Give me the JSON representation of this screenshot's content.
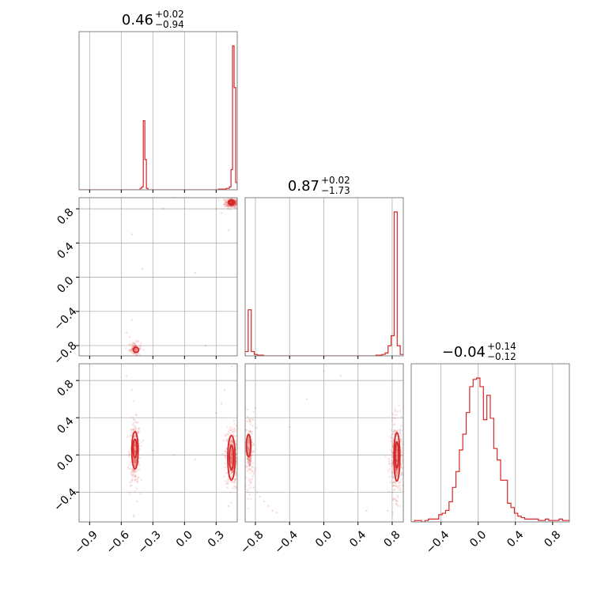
{
  "chart_data": {
    "type": "corner",
    "colors": {
      "line": "#d62728",
      "frame": "#808080",
      "grid": "#b0b0b0"
    },
    "grid": true,
    "parameters": [
      {
        "title": {
          "median": "0.46",
          "plus": "+0.02",
          "minus": "−0.94"
        },
        "range": [
          -1.0,
          0.5
        ],
        "ticks": [
          {
            "value": -0.9,
            "label": "−0.9"
          },
          {
            "value": -0.6,
            "label": "−0.6"
          },
          {
            "value": -0.3,
            "label": "−0.3"
          },
          {
            "value": 0.0,
            "label": "0.0"
          },
          {
            "value": 0.3,
            "label": "0.3"
          }
        ],
        "hist": [
          0,
          0,
          0,
          0,
          0,
          0,
          0,
          0,
          0,
          0,
          0,
          0,
          0,
          0,
          0,
          0,
          0,
          0,
          0,
          0,
          0,
          0,
          0,
          0,
          0,
          0,
          0,
          0,
          0,
          0,
          0,
          0,
          0,
          0,
          0,
          0,
          0,
          0,
          0,
          0.01,
          0.02,
          0.48,
          0.21,
          0.01,
          0,
          0,
          0,
          0,
          0,
          0,
          0,
          0,
          0,
          0,
          0,
          0,
          0,
          0,
          0,
          0,
          0,
          0,
          0,
          0,
          0,
          0,
          0,
          0,
          0,
          0,
          0,
          0,
          0,
          0,
          0,
          0,
          0,
          0,
          0,
          0,
          0,
          0,
          0,
          0,
          0,
          0,
          0,
          0,
          0,
          0.005,
          0.005,
          0.005,
          0.005,
          0.005,
          0.01,
          0.01,
          0.02,
          0.14,
          1.0,
          0.71,
          0.05
        ]
      },
      {
        "title": {
          "median": "0.87",
          "plus": "+0.02",
          "minus": "−1.73"
        },
        "range": [
          -0.92,
          0.93
        ],
        "ticks": [
          {
            "value": -0.8,
            "label": "−0.8"
          },
          {
            "value": -0.4,
            "label": "−0.4"
          },
          {
            "value": 0.0,
            "label": "0.0"
          },
          {
            "value": 0.4,
            "label": "0.4"
          },
          {
            "value": 0.8,
            "label": "0.8"
          }
        ],
        "hist": [
          0.03,
          0.32,
          0.03,
          0.01,
          0.005,
          0.005,
          0,
          0,
          0,
          0,
          0,
          0,
          0,
          0,
          0,
          0,
          0,
          0,
          0,
          0,
          0,
          0,
          0,
          0,
          0,
          0,
          0,
          0,
          0,
          0,
          0,
          0,
          0,
          0,
          0,
          0,
          0,
          0,
          0,
          0,
          0,
          0,
          0,
          0.005,
          0.005,
          0.01,
          0.02,
          0.07,
          0.14,
          1.0,
          0.07,
          0.01
        ]
      },
      {
        "title": {
          "median": "−0.04",
          "plus": "+0.14",
          "minus": "−0.12"
        },
        "range": [
          -0.72,
          0.98
        ],
        "ticks": [
          {
            "value": -0.4,
            "label": "−0.4"
          },
          {
            "value": 0.0,
            "label": "0.0"
          },
          {
            "value": 0.4,
            "label": "0.4"
          },
          {
            "value": 0.8,
            "label": "0.8"
          }
        ],
        "hist": [
          0,
          0.01,
          0.01,
          0,
          0.01,
          0.02,
          0.02,
          0.02,
          0.05,
          0.06,
          0.08,
          0.14,
          0.24,
          0.35,
          0.5,
          0.61,
          0.76,
          0.94,
          0.99,
          1.0,
          0.94,
          0.71,
          0.88,
          0.72,
          0.51,
          0.43,
          0.29,
          0.29,
          0.13,
          0.1,
          0.06,
          0.04,
          0.03,
          0.02,
          0.02,
          0.02,
          0.02,
          0.01,
          0.01,
          0.02,
          0.01,
          0.01,
          0.01,
          0.02,
          0.01,
          0.01
        ]
      }
    ],
    "pairs": [
      {
        "x_param": 0,
        "y_param": 1,
        "clusters": [
          {
            "cx": 0.45,
            "cy": 0.87,
            "sx": 0.035,
            "sy": 0.03,
            "n": 220
          },
          {
            "cx": -0.47,
            "cy": -0.84,
            "sx": 0.03,
            "sy": 0.04,
            "n": 90
          }
        ],
        "scatter": [
          [
            -0.55,
            -0.65
          ],
          [
            -0.52,
            -0.7
          ],
          [
            -0.5,
            -0.5
          ],
          [
            -0.2,
            0.8
          ],
          [
            0.1,
            0.05
          ],
          [
            -0.4,
            0.1
          ],
          [
            0.2,
            -0.8
          ],
          [
            0.35,
            0.75
          ],
          [
            0.3,
            0.8
          ],
          [
            -0.5,
            0.5
          ],
          [
            -0.1,
            0.93
          ],
          [
            0.42,
            0.55
          ]
        ],
        "contours": [
          {
            "cx": 0.445,
            "cy": 0.875,
            "rx": 0.03,
            "ry": 0.03
          },
          {
            "cx": 0.445,
            "cy": 0.875,
            "rx": 0.015,
            "ry": 0.018
          },
          {
            "cx": -0.46,
            "cy": -0.85,
            "rx": 0.025,
            "ry": 0.03
          }
        ]
      },
      {
        "x_param": 0,
        "y_param": 2,
        "clusters": [
          {
            "cx": -0.47,
            "cy": 0.02,
            "sx": 0.025,
            "sy": 0.17,
            "n": 260
          },
          {
            "cx": 0.45,
            "cy": -0.03,
            "sx": 0.03,
            "sy": 0.17,
            "n": 320
          }
        ],
        "scatter": [
          [
            -0.5,
            0.7
          ],
          [
            -0.55,
            0.85
          ],
          [
            -0.45,
            -0.5
          ],
          [
            0.3,
            0.45
          ],
          [
            0.35,
            0.55
          ],
          [
            0.42,
            -0.55
          ],
          [
            0.5,
            0.9
          ],
          [
            -0.1,
            0.0
          ],
          [
            -0.3,
            0.05
          ],
          [
            0.1,
            -0.05
          ],
          [
            0.38,
            0.7
          ],
          [
            -0.48,
            -0.65
          ],
          [
            0.45,
            0.95
          ]
        ],
        "contours": [
          {
            "cx": -0.47,
            "cy": 0.05,
            "rx": 0.03,
            "ry": 0.2
          },
          {
            "cx": -0.47,
            "cy": 0.07,
            "rx": 0.018,
            "ry": 0.1
          },
          {
            "cx": 0.445,
            "cy": -0.03,
            "rx": 0.035,
            "ry": 0.24
          },
          {
            "cx": 0.445,
            "cy": -0.03,
            "rx": 0.02,
            "ry": 0.13
          }
        ]
      },
      {
        "x_param": 1,
        "y_param": 2,
        "clusters": [
          {
            "cx": -0.87,
            "cy": 0.05,
            "sx": 0.03,
            "sy": 0.2,
            "n": 140
          },
          {
            "cx": 0.85,
            "cy": -0.05,
            "sx": 0.035,
            "sy": 0.2,
            "n": 360
          }
        ],
        "scatter": [
          [
            -0.85,
            -0.3
          ],
          [
            -0.82,
            -0.35
          ],
          [
            -0.78,
            -0.4
          ],
          [
            -0.75,
            -0.45
          ],
          [
            -0.7,
            -0.5
          ],
          [
            -0.65,
            -0.55
          ],
          [
            -0.6,
            -0.6
          ],
          [
            -0.55,
            -0.62
          ],
          [
            -0.8,
            0.5
          ],
          [
            -0.2,
            0.6
          ],
          [
            0.0,
            0.9
          ],
          [
            0.5,
            -0.6
          ],
          [
            -0.4,
            0.3
          ],
          [
            0.8,
            0.8
          ],
          [
            0.75,
            -0.6
          ],
          [
            0.2,
            0.85
          ]
        ],
        "contours": [
          {
            "cx": -0.88,
            "cy": 0.1,
            "rx": 0.025,
            "ry": 0.12
          },
          {
            "cx": 0.855,
            "cy": -0.02,
            "rx": 0.035,
            "ry": 0.26
          },
          {
            "cx": 0.855,
            "cy": 0.0,
            "rx": 0.02,
            "ry": 0.14
          }
        ]
      }
    ]
  }
}
